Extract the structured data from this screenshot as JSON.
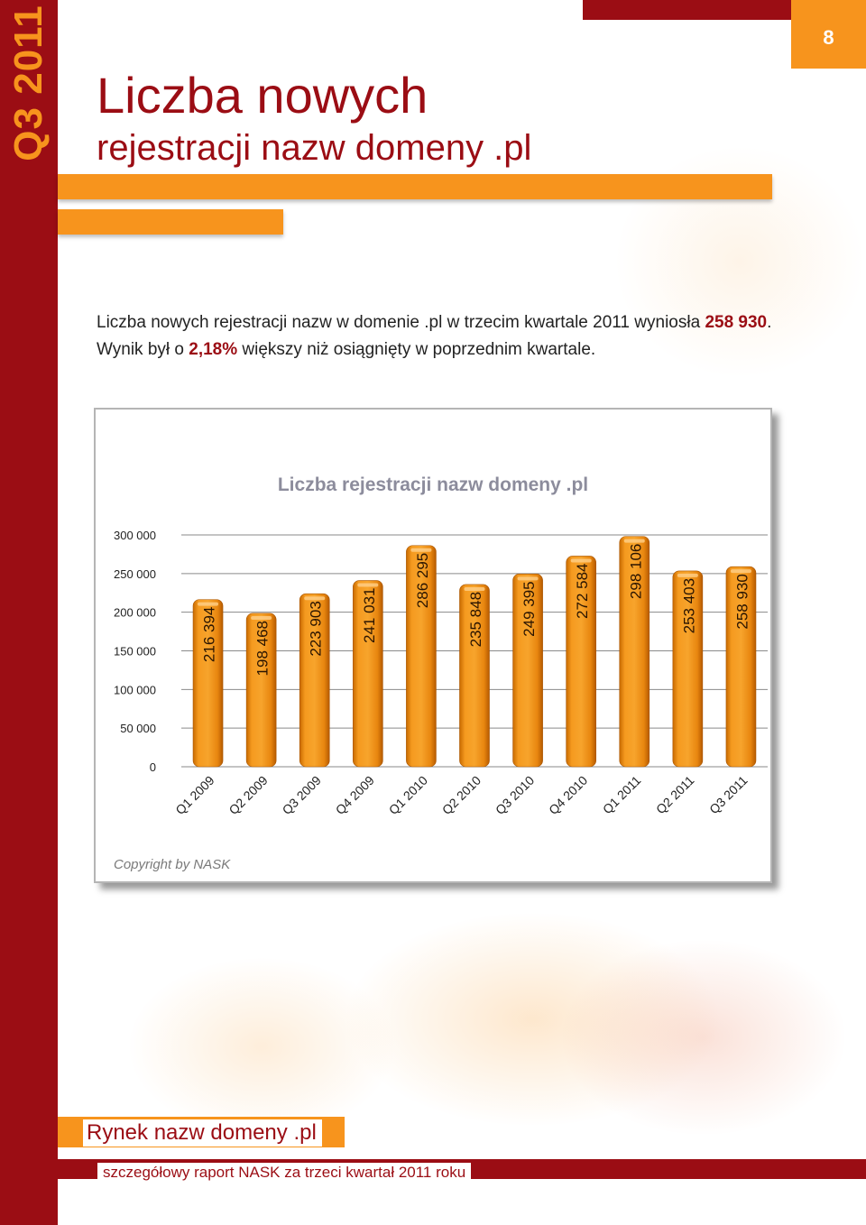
{
  "side_label": "Q3 2011",
  "page_number": "8",
  "title": {
    "line1": "Liczba nowych",
    "line2": "rejestracji nazw domeny .pl"
  },
  "intro": {
    "part1": "Liczba nowych rejestracji nazw w domenie .pl w trzecim kwartale 2011 wyniosła ",
    "value": "258 930",
    "part2": ". Wynik był o ",
    "percent": "2,18%",
    "part3": " większy niż osiągnięty w poprzednim kwartale."
  },
  "colors": {
    "brand_red": "#9b0d14",
    "accent_orange": "#f7941d"
  },
  "chart_data": {
    "type": "bar",
    "title": "Liczba rejestracji nazw domeny .pl",
    "categories": [
      "Q1 2009",
      "Q2 2009",
      "Q3 2009",
      "Q4 2009",
      "Q1 2010",
      "Q2 2010",
      "Q3 2010",
      "Q4 2010",
      "Q1 2011",
      "Q2 2011",
      "Q3 2011"
    ],
    "values": [
      216394,
      198468,
      223903,
      241031,
      286295,
      235848,
      249395,
      272584,
      298106,
      253403,
      258930
    ],
    "value_labels": [
      "216 394",
      "198 468",
      "223 903",
      "241 031",
      "286 295",
      "235 848",
      "249 395",
      "272 584",
      "298 106",
      "253 403",
      "258 930"
    ],
    "y_ticks": [
      "0",
      "50 000",
      "100 000",
      "150 000",
      "200 000",
      "250 000",
      "300 000"
    ],
    "ylim": [
      0,
      300000
    ],
    "grid": true,
    "legend": "none"
  },
  "copyright": "Copyright by NASK",
  "footer": {
    "title": "Rynek nazw domeny .pl",
    "subtitle": "szczegółowy raport NASK za trzeci kwartał 2011 roku"
  }
}
